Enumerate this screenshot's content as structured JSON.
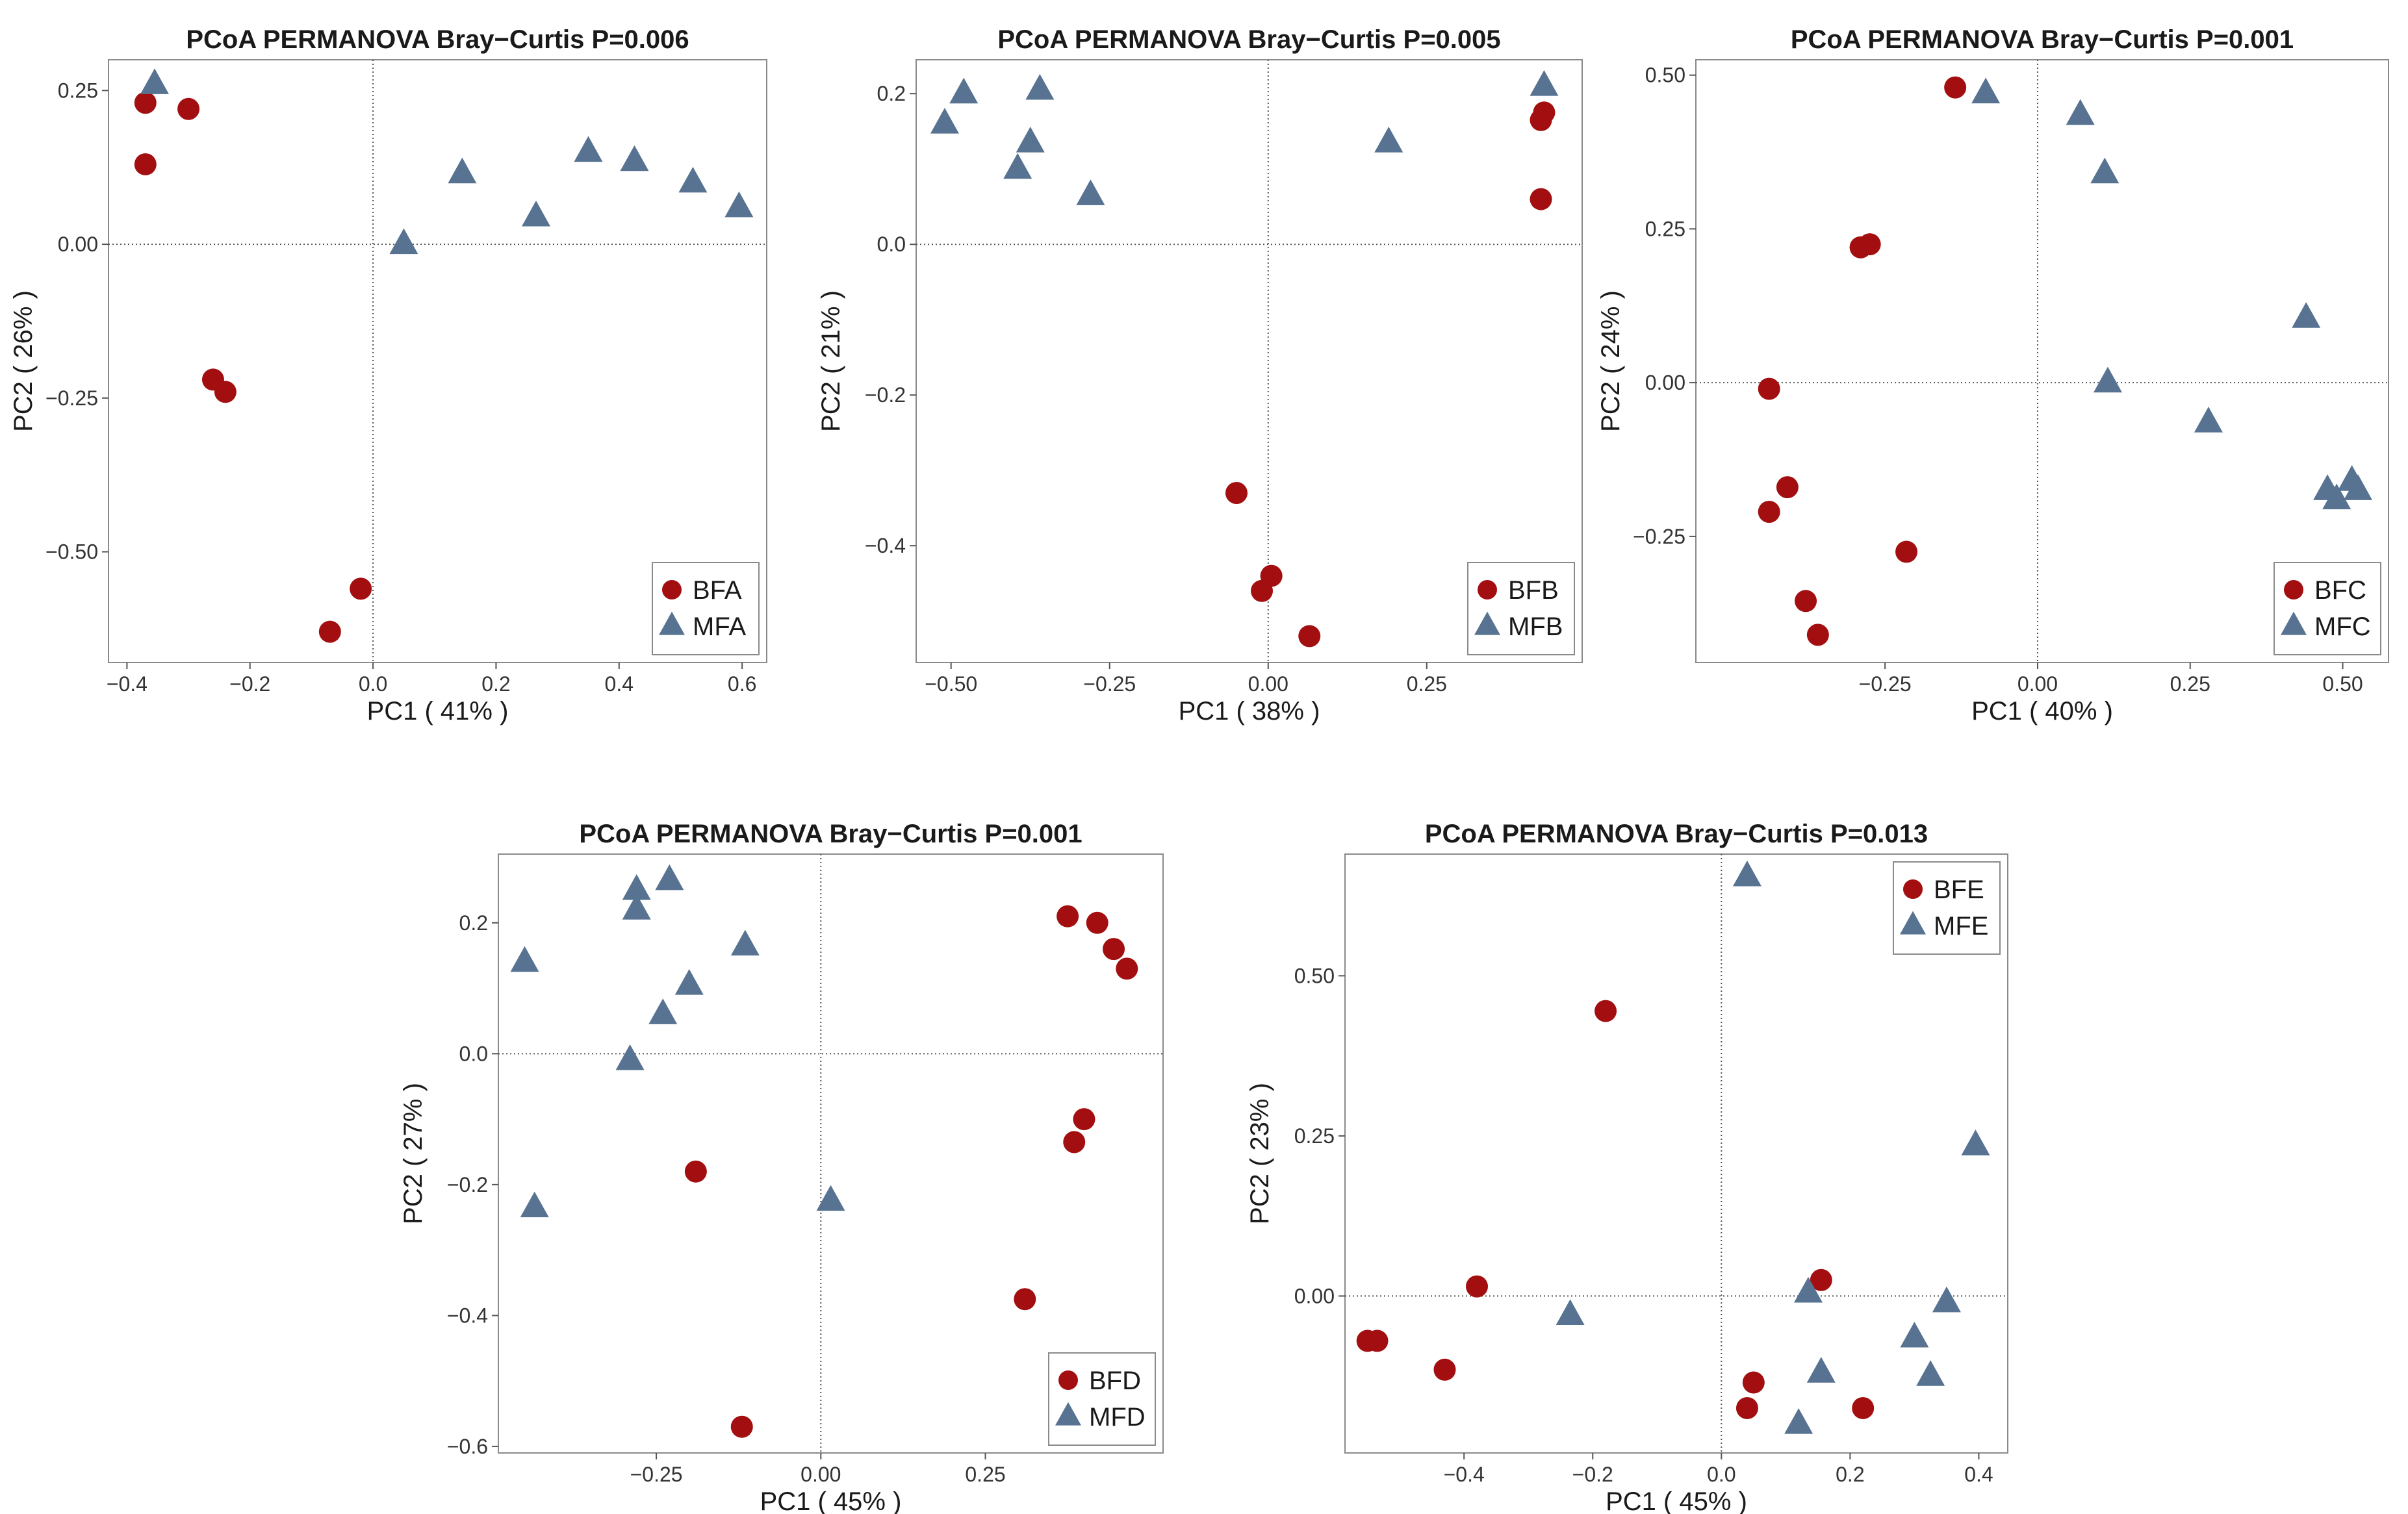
{
  "colors": {
    "B": "#a30f10",
    "M": "#587391"
  },
  "chart_data": [
    {
      "type": "scatter",
      "title": "PCoA PERMANOVA Bray−Curtis P=0.006",
      "xlabel": "PC1 ( 41% )",
      "ylabel": "PC2 ( 26% )",
      "xlim": [
        -0.43,
        0.64
      ],
      "ylim": [
        -0.68,
        0.3
      ],
      "xticks": [
        -0.4,
        -0.2,
        0.0,
        0.2,
        0.4,
        0.6
      ],
      "xtick_labels": [
        "−0.4",
        "−0.2",
        "0.0",
        "0.2",
        "0.4",
        "0.6"
      ],
      "yticks": [
        0.25,
        0.0,
        -0.25,
        -0.5
      ],
      "ytick_labels": [
        "0.25",
        "0.00",
        "−0.25",
        "−0.50"
      ],
      "legend_position": "bottom-right",
      "series": [
        {
          "name": "BFA",
          "marker": "circle",
          "x": [
            -0.37,
            -0.37,
            -0.3,
            -0.26,
            -0.24,
            -0.07,
            -0.02
          ],
          "y": [
            0.23,
            0.13,
            0.22,
            -0.22,
            -0.24,
            -0.63,
            -0.56
          ]
        },
        {
          "name": "MFA",
          "marker": "triangle",
          "x": [
            -0.355,
            0.05,
            0.145,
            0.265,
            0.35,
            0.425,
            0.52,
            0.595
          ],
          "y": [
            0.26,
            0.0,
            0.115,
            0.045,
            0.15,
            0.135,
            0.1,
            0.06
          ]
        }
      ]
    },
    {
      "type": "scatter",
      "title": "PCoA PERMANOVA Bray−Curtis P=0.005",
      "xlabel": "PC1 ( 38% )",
      "ylabel": "PC2 ( 21% )",
      "xlim": [
        -0.555,
        0.495
      ],
      "ylim": [
        -0.555,
        0.245
      ],
      "xticks": [
        -0.5,
        -0.25,
        0.0,
        0.25
      ],
      "xtick_labels": [
        "−0.50",
        "−0.25",
        "0.00",
        "0.25"
      ],
      "yticks": [
        0.2,
        0.0,
        -0.2,
        -0.4
      ],
      "ytick_labels": [
        "0.2",
        "0.0",
        "−0.2",
        "−0.4"
      ],
      "legend_position": "bottom-right",
      "series": [
        {
          "name": "BFB",
          "marker": "circle",
          "x": [
            0.435,
            0.43,
            0.43,
            -0.05,
            0.005,
            -0.01,
            0.065
          ],
          "y": [
            0.175,
            0.165,
            0.06,
            -0.33,
            -0.44,
            -0.46,
            -0.52
          ]
        },
        {
          "name": "MFB",
          "marker": "triangle",
          "x": [
            -0.51,
            -0.48,
            -0.36,
            -0.375,
            -0.395,
            -0.28,
            0.19,
            0.435
          ],
          "y": [
            0.16,
            0.2,
            0.205,
            0.135,
            0.1,
            0.065,
            0.135,
            0.21
          ]
        }
      ]
    },
    {
      "type": "scatter",
      "title": "PCoA PERMANOVA Bray−Curtis P=0.001",
      "xlabel": "PC1 ( 40% )",
      "ylabel": "PC2 ( 24% )",
      "xlim": [
        -0.56,
        0.575
      ],
      "ylim": [
        -0.455,
        0.525
      ],
      "xticks": [
        -0.25,
        0.0,
        0.25,
        0.5
      ],
      "xtick_labels": [
        "−0.25",
        "0.00",
        "0.25",
        "0.50"
      ],
      "yticks": [
        0.5,
        0.25,
        0.0,
        -0.25
      ],
      "ytick_labels": [
        "0.50",
        "0.25",
        "0.00",
        "−0.25"
      ],
      "legend_position": "bottom-right",
      "series": [
        {
          "name": "BFC",
          "marker": "circle",
          "x": [
            -0.135,
            -0.29,
            -0.275,
            -0.44,
            -0.41,
            -0.44,
            -0.38,
            -0.36,
            -0.215
          ],
          "y": [
            0.48,
            0.22,
            0.225,
            -0.01,
            -0.17,
            -0.21,
            -0.355,
            -0.41,
            -0.275
          ]
        },
        {
          "name": "MFC",
          "marker": "triangle",
          "x": [
            -0.085,
            0.07,
            0.11,
            0.44,
            0.115,
            0.28,
            0.475,
            0.49,
            0.515,
            0.525
          ],
          "y": [
            0.47,
            0.435,
            0.34,
            0.105,
            0.0,
            -0.065,
            -0.175,
            -0.19,
            -0.16,
            -0.175
          ]
        }
      ]
    },
    {
      "type": "scatter",
      "title": "PCoA PERMANOVA  Bray−Curtis P=0.001",
      "xlabel": "PC1 ( 45% )",
      "ylabel": "PC2 ( 27% )",
      "xlim": [
        -0.49,
        0.52
      ],
      "ylim": [
        -0.61,
        0.305
      ],
      "xticks": [
        -0.25,
        0.0,
        0.25
      ],
      "xtick_labels": [
        "−0.25",
        "0.00",
        "0.25"
      ],
      "yticks": [
        0.2,
        0.0,
        -0.2,
        -0.4,
        -0.6
      ],
      "ytick_labels": [
        "0.2",
        "0.0",
        "−0.2",
        "−0.4",
        "−0.6"
      ],
      "legend_position": "bottom-right",
      "series": [
        {
          "name": "BFD",
          "marker": "circle",
          "x": [
            0.375,
            0.42,
            0.445,
            0.465,
            0.4,
            0.385,
            -0.19,
            0.31,
            -0.12
          ],
          "y": [
            0.21,
            0.2,
            0.16,
            0.13,
            -0.1,
            -0.135,
            -0.18,
            -0.375,
            -0.57
          ]
        },
        {
          "name": "MFD",
          "marker": "triangle",
          "x": [
            -0.45,
            -0.28,
            -0.28,
            -0.23,
            -0.2,
            -0.24,
            -0.115,
            -0.29,
            -0.435,
            0.015
          ],
          "y": [
            0.14,
            0.25,
            0.22,
            0.265,
            0.105,
            0.06,
            0.165,
            -0.01,
            -0.235,
            -0.225
          ]
        }
      ]
    },
    {
      "type": "scatter",
      "title": "PCoA PERMANOVA Bray−Curtis P=0.013",
      "xlabel": "PC1 ( 45% )",
      "ylabel": "PC2 ( 23% )",
      "xlim": [
        -0.585,
        0.445
      ],
      "ylim": [
        -0.245,
        0.69
      ],
      "xticks": [
        -0.4,
        -0.2,
        0.0,
        0.2,
        0.4
      ],
      "xtick_labels": [
        "−0.4",
        "−0.2",
        "0.0",
        "0.2",
        "0.4"
      ],
      "yticks": [
        0.5,
        0.25,
        0.0
      ],
      "ytick_labels": [
        "0.50",
        "0.25",
        "0.00"
      ],
      "legend_position": "top-right",
      "series": [
        {
          "name": "BFE",
          "marker": "circle",
          "x": [
            -0.18,
            -0.38,
            -0.55,
            -0.535,
            -0.43,
            0.155,
            0.05,
            0.04,
            0.22
          ],
          "y": [
            0.445,
            0.015,
            -0.07,
            -0.07,
            -0.115,
            0.025,
            -0.135,
            -0.175,
            -0.175
          ]
        },
        {
          "name": "MFE",
          "marker": "triangle",
          "x": [
            0.04,
            0.395,
            -0.235,
            0.135,
            0.35,
            0.3,
            0.155,
            0.325,
            0.12
          ],
          "y": [
            0.655,
            0.235,
            -0.03,
            0.005,
            -0.01,
            -0.065,
            -0.12,
            -0.125,
            -0.2
          ]
        }
      ]
    }
  ]
}
